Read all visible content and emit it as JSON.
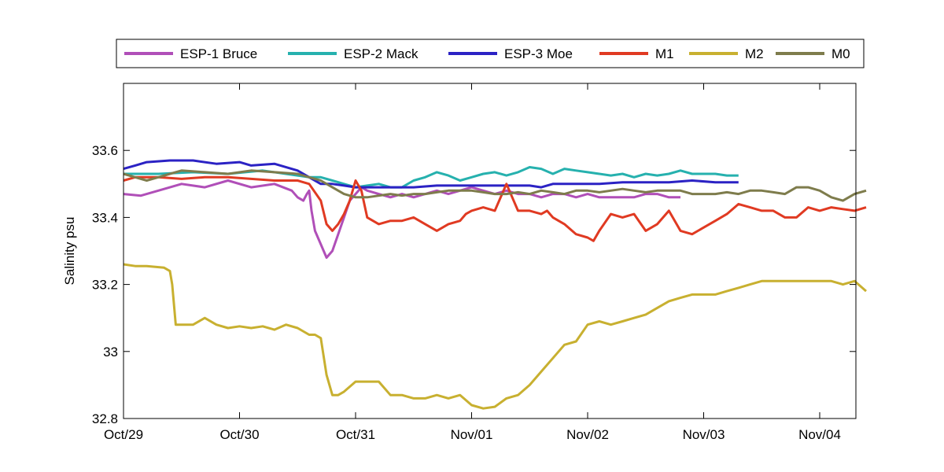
{
  "chart_data": {
    "type": "line",
    "title": "",
    "xlabel": "",
    "ylabel": "Salinity psu",
    "x_unit": "day",
    "x_ticks": [
      "Oct/29",
      "Oct/30",
      "Oct/31",
      "Nov/01",
      "Nov/02",
      "Nov/03",
      "Nov/04"
    ],
    "xlim": [
      0,
      6.4
    ],
    "ylim": [
      32.8,
      33.8
    ],
    "y_ticks": [
      "32.8",
      "33",
      "33.2",
      "33.4",
      "33.6"
    ],
    "grid": false,
    "legend_position": "top, outside plot, horizontal",
    "series": [
      {
        "name": "ESP-1 Bruce",
        "color": "#b04fb8",
        "x": [
          0.0,
          0.15,
          0.3,
          0.5,
          0.7,
          0.9,
          1.1,
          1.3,
          1.45,
          1.5,
          1.55,
          1.58,
          1.6,
          1.62,
          1.65,
          1.7,
          1.75,
          1.8,
          1.85,
          1.9,
          1.95,
          2.0,
          2.05,
          2.1,
          2.2,
          2.3,
          2.4,
          2.5,
          2.6,
          2.7,
          2.8,
          2.9,
          3.0,
          3.1,
          3.2,
          3.3,
          3.4,
          3.5,
          3.6,
          3.7,
          3.8,
          3.9,
          4.0,
          4.1,
          4.2,
          4.3,
          4.4,
          4.5,
          4.6,
          4.7,
          4.8
        ],
        "y": [
          33.47,
          33.465,
          33.48,
          33.5,
          33.49,
          33.51,
          33.49,
          33.5,
          33.48,
          33.46,
          33.45,
          33.47,
          33.48,
          33.42,
          33.36,
          33.32,
          33.28,
          33.3,
          33.35,
          33.4,
          33.45,
          33.47,
          33.49,
          33.48,
          33.47,
          33.46,
          33.47,
          33.46,
          33.47,
          33.48,
          33.47,
          33.48,
          33.49,
          33.48,
          33.47,
          33.48,
          33.47,
          33.47,
          33.46,
          33.47,
          33.47,
          33.46,
          33.47,
          33.46,
          33.46,
          33.46,
          33.46,
          33.47,
          33.47,
          33.46,
          33.46
        ]
      },
      {
        "name": "ESP-2 Mack",
        "color": "#26b1ae",
        "x": [
          0.0,
          0.3,
          0.6,
          0.9,
          1.2,
          1.5,
          1.6,
          1.7,
          1.8,
          1.9,
          2.0,
          2.1,
          2.2,
          2.3,
          2.4,
          2.5,
          2.6,
          2.7,
          2.8,
          2.9,
          3.0,
          3.1,
          3.2,
          3.3,
          3.4,
          3.5,
          3.6,
          3.7,
          3.8,
          3.9,
          4.0,
          4.1,
          4.2,
          4.3,
          4.4,
          4.5,
          4.6,
          4.7,
          4.8,
          4.9,
          5.0,
          5.1,
          5.2,
          5.3
        ],
        "y": [
          33.53,
          33.53,
          33.535,
          33.53,
          33.54,
          33.525,
          33.52,
          33.52,
          33.51,
          33.5,
          33.49,
          33.495,
          33.5,
          33.49,
          33.49,
          33.51,
          33.52,
          33.535,
          33.525,
          33.51,
          33.52,
          33.53,
          33.535,
          33.525,
          33.535,
          33.55,
          33.545,
          33.53,
          33.545,
          33.54,
          33.535,
          33.53,
          33.525,
          33.53,
          33.52,
          33.53,
          33.525,
          33.53,
          33.54,
          33.53,
          33.53,
          33.53,
          33.525,
          33.525
        ]
      },
      {
        "name": "ESP-3 Moe",
        "color": "#2b22c4",
        "x": [
          0.0,
          0.1,
          0.2,
          0.4,
          0.6,
          0.8,
          1.0,
          1.1,
          1.3,
          1.5,
          1.6,
          1.7,
          1.8,
          1.9,
          2.0,
          2.1,
          2.3,
          2.5,
          2.7,
          2.9,
          3.1,
          3.3,
          3.5,
          3.6,
          3.7,
          3.9,
          4.1,
          4.3,
          4.5,
          4.7,
          4.9,
          5.1,
          5.3
        ],
        "y": [
          33.545,
          33.555,
          33.565,
          33.57,
          33.57,
          33.56,
          33.565,
          33.555,
          33.56,
          33.54,
          33.52,
          33.5,
          33.5,
          33.495,
          33.49,
          33.49,
          33.49,
          33.49,
          33.495,
          33.495,
          33.495,
          33.495,
          33.495,
          33.49,
          33.5,
          33.5,
          33.5,
          33.505,
          33.505,
          33.505,
          33.51,
          33.505,
          33.505
        ]
      },
      {
        "name": "M1",
        "color": "#e03a22",
        "x": [
          0.0,
          0.1,
          0.3,
          0.5,
          0.7,
          0.9,
          1.1,
          1.3,
          1.5,
          1.6,
          1.7,
          1.75,
          1.8,
          1.85,
          1.9,
          1.95,
          2.0,
          2.05,
          2.1,
          2.2,
          2.3,
          2.4,
          2.5,
          2.6,
          2.7,
          2.8,
          2.9,
          2.95,
          3.0,
          3.1,
          3.2,
          3.3,
          3.4,
          3.5,
          3.6,
          3.65,
          3.7,
          3.8,
          3.9,
          4.0,
          4.05,
          4.1,
          4.2,
          4.3,
          4.4,
          4.5,
          4.6,
          4.7,
          4.8,
          4.9,
          5.0,
          5.1,
          5.2,
          5.3,
          5.4,
          5.5,
          5.6,
          5.7,
          5.8,
          5.9,
          6.0,
          6.1,
          6.2,
          6.3,
          6.4
        ],
        "y": [
          33.51,
          33.52,
          33.52,
          33.515,
          33.52,
          33.52,
          33.515,
          33.51,
          33.51,
          33.5,
          33.45,
          33.38,
          33.36,
          33.38,
          33.41,
          33.45,
          33.51,
          33.48,
          33.4,
          33.38,
          33.39,
          33.39,
          33.4,
          33.38,
          33.36,
          33.38,
          33.39,
          33.41,
          33.42,
          33.43,
          33.42,
          33.5,
          33.42,
          33.42,
          33.41,
          33.42,
          33.4,
          33.38,
          33.35,
          33.34,
          33.33,
          33.36,
          33.41,
          33.4,
          33.41,
          33.36,
          33.38,
          33.42,
          33.36,
          33.35,
          33.37,
          33.39,
          33.41,
          33.44,
          33.43,
          33.42,
          33.42,
          33.4,
          33.4,
          33.43,
          33.42,
          33.43,
          33.425,
          33.42,
          33.43
        ]
      },
      {
        "name": "M2",
        "color": "#c8b030",
        "x": [
          0.0,
          0.1,
          0.2,
          0.35,
          0.4,
          0.42,
          0.45,
          0.5,
          0.6,
          0.7,
          0.8,
          0.9,
          1.0,
          1.1,
          1.2,
          1.3,
          1.4,
          1.5,
          1.6,
          1.65,
          1.7,
          1.75,
          1.8,
          1.85,
          1.9,
          2.0,
          2.1,
          2.2,
          2.3,
          2.4,
          2.5,
          2.6,
          2.7,
          2.8,
          2.9,
          3.0,
          3.1,
          3.2,
          3.3,
          3.4,
          3.5,
          3.6,
          3.7,
          3.8,
          3.9,
          4.0,
          4.1,
          4.2,
          4.3,
          4.4,
          4.5,
          4.6,
          4.7,
          4.8,
          4.9,
          5.0,
          5.1,
          5.2,
          5.3,
          5.4,
          5.5,
          5.6,
          5.7,
          5.8,
          5.9,
          6.0,
          6.1,
          6.2,
          6.3,
          6.4
        ],
        "y": [
          33.26,
          33.255,
          33.255,
          33.25,
          33.24,
          33.2,
          33.08,
          33.08,
          33.08,
          33.1,
          33.08,
          33.07,
          33.075,
          33.07,
          33.075,
          33.065,
          33.08,
          33.07,
          33.05,
          33.05,
          33.04,
          32.93,
          32.87,
          32.87,
          32.88,
          32.91,
          32.91,
          32.91,
          32.87,
          32.87,
          32.86,
          32.86,
          32.87,
          32.86,
          32.87,
          32.84,
          32.83,
          32.835,
          32.86,
          32.87,
          32.9,
          32.94,
          32.98,
          33.02,
          33.03,
          33.08,
          33.09,
          33.08,
          33.09,
          33.1,
          33.11,
          33.13,
          33.15,
          33.16,
          33.17,
          33.17,
          33.17,
          33.18,
          33.19,
          33.2,
          33.21,
          33.21,
          33.21,
          33.21,
          33.21,
          33.21,
          33.21,
          33.2,
          33.21,
          33.18
        ]
      },
      {
        "name": "M0",
        "color": "#7e7c4c",
        "x": [
          0.0,
          0.1,
          0.2,
          0.3,
          0.4,
          0.5,
          0.7,
          0.9,
          1.1,
          1.3,
          1.5,
          1.6,
          1.7,
          1.8,
          1.9,
          2.0,
          2.1,
          2.2,
          2.3,
          2.4,
          2.5,
          2.6,
          2.7,
          2.8,
          2.9,
          3.0,
          3.1,
          3.2,
          3.3,
          3.4,
          3.5,
          3.6,
          3.7,
          3.8,
          3.9,
          4.0,
          4.1,
          4.2,
          4.3,
          4.4,
          4.5,
          4.6,
          4.7,
          4.8,
          4.9,
          5.0,
          5.1,
          5.2,
          5.3,
          5.4,
          5.5,
          5.6,
          5.7,
          5.8,
          5.9,
          6.0,
          6.1,
          6.2,
          6.3,
          6.4
        ],
        "y": [
          33.53,
          33.52,
          33.51,
          33.52,
          33.53,
          33.54,
          33.535,
          33.53,
          33.54,
          33.535,
          33.53,
          33.52,
          33.51,
          33.49,
          33.47,
          33.46,
          33.46,
          33.465,
          33.47,
          33.465,
          33.47,
          33.47,
          33.475,
          33.48,
          33.48,
          33.48,
          33.475,
          33.47,
          33.47,
          33.475,
          33.47,
          33.48,
          33.475,
          33.47,
          33.48,
          33.48,
          33.475,
          33.48,
          33.485,
          33.48,
          33.475,
          33.48,
          33.48,
          33.48,
          33.47,
          33.47,
          33.47,
          33.475,
          33.47,
          33.48,
          33.48,
          33.475,
          33.47,
          33.49,
          33.49,
          33.48,
          33.46,
          33.45,
          33.47,
          33.48
        ]
      }
    ]
  }
}
